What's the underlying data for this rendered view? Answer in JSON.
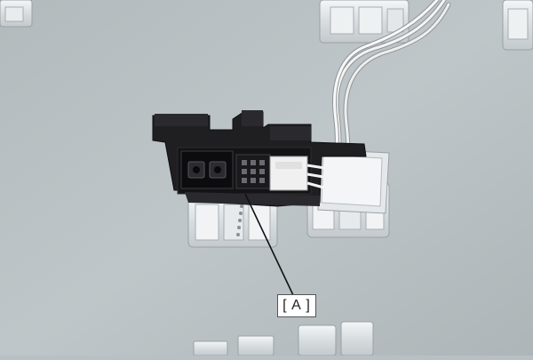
{
  "photo": {
    "subject": "sensor-assembly",
    "wall_color": "#bcc3c6",
    "bracket_color": "#1f1f22",
    "cable_color": "#f2f2f2"
  },
  "callout": {
    "label": "[ A ]"
  }
}
